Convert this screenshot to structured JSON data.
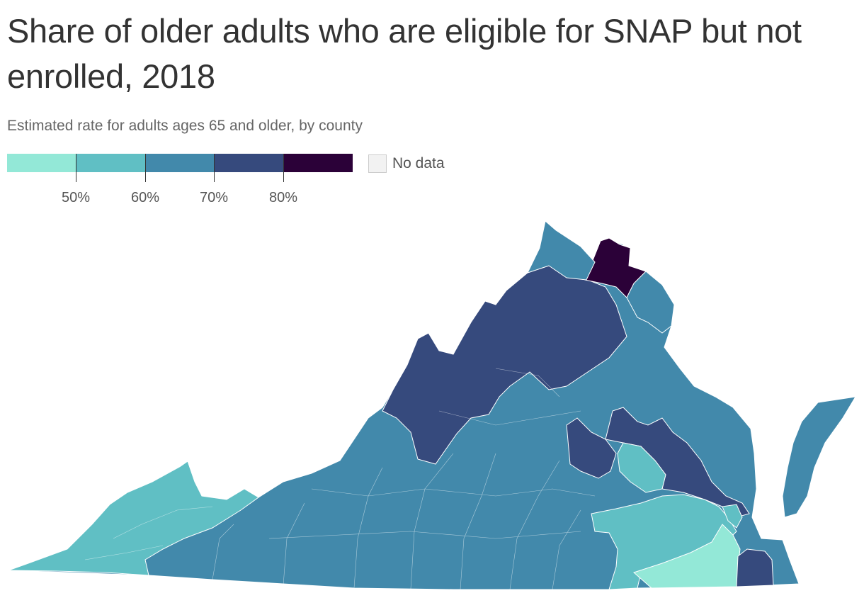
{
  "title": "Share of older adults who are eligible for SNAP but not enrolled, 2018",
  "subtitle": "Estimated rate for adults ages 65 and older, by county",
  "legend": {
    "bins": [
      {
        "color": "#93e8d7"
      },
      {
        "color": "#60bfc4"
      },
      {
        "color": "#4289ab"
      },
      {
        "color": "#364a7d"
      },
      {
        "color": "#2b0138"
      }
    ],
    "labels": [
      "50%",
      "60%",
      "70%",
      "80%"
    ],
    "no_data": {
      "label": "No data",
      "color": "#f2f2f2"
    }
  },
  "map": {
    "region": "Virginia",
    "unit": "county",
    "colors": {
      "lowest": "#93e8d7",
      "low": "#60bfc4",
      "mid": "#4289ab",
      "high": "#364a7d",
      "highest": "#2b0138",
      "border": "#ffffff"
    }
  }
}
